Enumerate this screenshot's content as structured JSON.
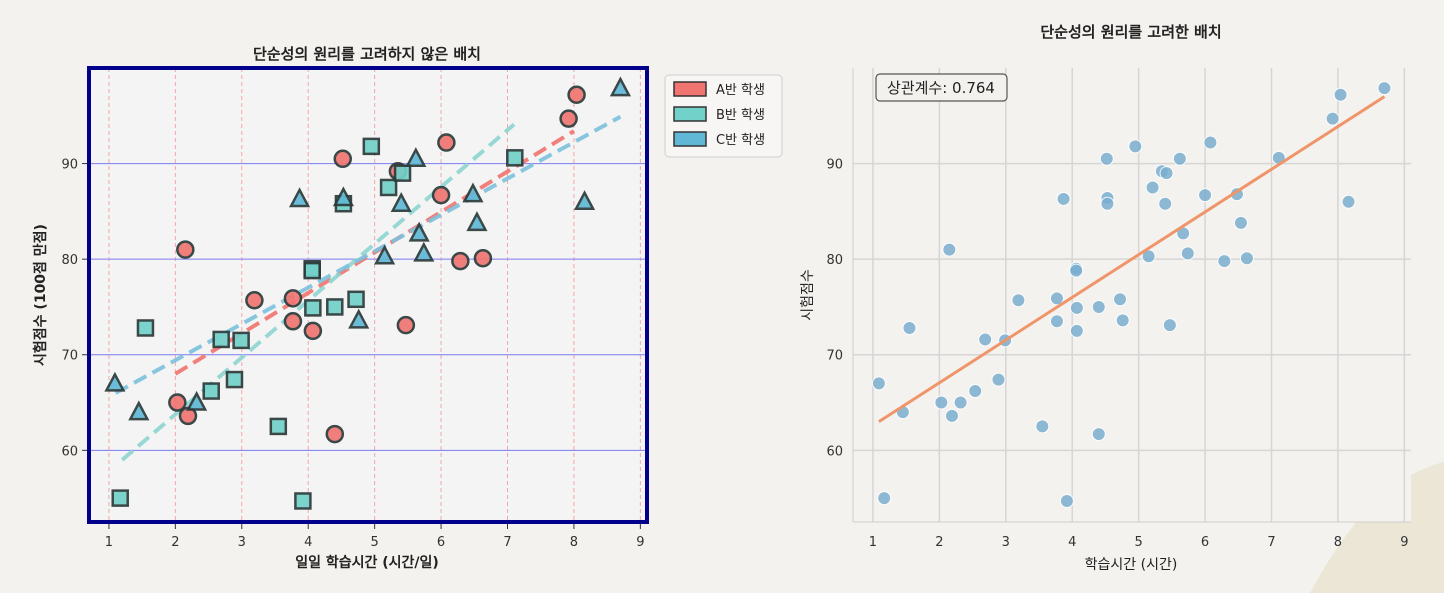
{
  "chart_data": [
    {
      "type": "scatter",
      "title": "단순성의 원리를 고려하지 않은 배치",
      "xlabel": "일일 학습시간 (시간/일)",
      "ylabel": "시험점수 (100점 만점)",
      "xlim": [
        0.7,
        9.1
      ],
      "ylim": [
        52.5,
        100.0
      ],
      "xticks": [
        1,
        2,
        3,
        4,
        5,
        6,
        7,
        8,
        9
      ],
      "yticks": [
        60,
        70,
        80,
        90
      ],
      "grid": {
        "x": "dashed",
        "y": "solid"
      },
      "legend_position": "outside-top-right",
      "series": [
        {
          "name": "A반 학생",
          "marker": "circle",
          "color": "#f07470",
          "trend_color": "#f07470",
          "points": [
            [
              2.03,
              65.0
            ],
            [
              2.15,
              81.0
            ],
            [
              2.19,
              63.6
            ],
            [
              3.19,
              75.7
            ],
            [
              3.77,
              75.9
            ],
            [
              3.77,
              73.5
            ],
            [
              4.07,
              72.5
            ],
            [
              4.4,
              61.7
            ],
            [
              4.52,
              90.5
            ],
            [
              5.35,
              89.2
            ],
            [
              5.47,
              73.1
            ],
            [
              6.0,
              86.7
            ],
            [
              6.08,
              92.2
            ],
            [
              6.29,
              79.8
            ],
            [
              6.63,
              80.1
            ],
            [
              7.92,
              94.7
            ],
            [
              8.04,
              97.2
            ]
          ],
          "trend": [
            [
              2.0,
              68.0
            ],
            [
              8.0,
              93.4
            ]
          ]
        },
        {
          "name": "B반 학생",
          "marker": "square",
          "color": "#72d1c9",
          "trend_color": "#8fd6d1",
          "points": [
            [
              1.17,
              55.0
            ],
            [
              1.55,
              72.8
            ],
            [
              2.54,
              66.2
            ],
            [
              2.69,
              71.6
            ],
            [
              2.89,
              67.4
            ],
            [
              2.99,
              71.5
            ],
            [
              3.55,
              62.5
            ],
            [
              3.92,
              54.7
            ],
            [
              4.06,
              79.0
            ],
            [
              4.06,
              78.8
            ],
            [
              4.07,
              74.9
            ],
            [
              4.4,
              75.0
            ],
            [
              4.53,
              85.8
            ],
            [
              4.72,
              75.8
            ],
            [
              4.95,
              91.8
            ],
            [
              5.21,
              87.5
            ],
            [
              5.42,
              89.0
            ],
            [
              7.11,
              90.6
            ]
          ],
          "trend": [
            [
              1.2,
              59.0
            ],
            [
              7.1,
              94.1
            ]
          ]
        },
        {
          "name": "C반 학생",
          "marker": "triangle",
          "color": "#60b8d6",
          "trend_color": "#7cc2dc",
          "points": [
            [
              1.09,
              67.0
            ],
            [
              1.45,
              64.0
            ],
            [
              2.32,
              65.0
            ],
            [
              3.87,
              86.3
            ],
            [
              4.53,
              86.4
            ],
            [
              4.76,
              73.6
            ],
            [
              5.15,
              80.3
            ],
            [
              5.4,
              85.8
            ],
            [
              5.62,
              90.5
            ],
            [
              5.67,
              82.7
            ],
            [
              5.74,
              80.6
            ],
            [
              6.48,
              86.8
            ],
            [
              6.54,
              83.8
            ],
            [
              8.16,
              86.0
            ],
            [
              8.7,
              97.9
            ]
          ],
          "trend": [
            [
              1.1,
              66.0
            ],
            [
              8.7,
              94.9
            ]
          ]
        }
      ]
    },
    {
      "type": "scatter",
      "title": "단순성의 원리를 고려한 배치",
      "xlabel": "학습시간 (시간)",
      "ylabel": "시험점수",
      "xlim": [
        0.7,
        9.1
      ],
      "ylim": [
        52.5,
        100.0
      ],
      "xticks": [
        1,
        2,
        3,
        4,
        5,
        6,
        7,
        8,
        9
      ],
      "yticks": [
        60,
        70,
        80,
        90
      ],
      "grid": {
        "x": "solid",
        "y": "solid"
      },
      "annotation": "상관계수: 0.764",
      "point_color": "#7aaed0",
      "trend_color": "#f0956a",
      "trend": [
        [
          1.09,
          63.0
        ],
        [
          8.7,
          97.0
        ]
      ],
      "points": [
        [
          1.09,
          67.0
        ],
        [
          1.17,
          55.0
        ],
        [
          1.45,
          64.0
        ],
        [
          1.55,
          72.8
        ],
        [
          2.03,
          65.0
        ],
        [
          2.15,
          81.0
        ],
        [
          2.19,
          63.6
        ],
        [
          2.32,
          65.0
        ],
        [
          2.54,
          66.2
        ],
        [
          2.69,
          71.6
        ],
        [
          2.89,
          67.4
        ],
        [
          2.99,
          71.5
        ],
        [
          3.19,
          75.7
        ],
        [
          3.55,
          62.5
        ],
        [
          3.77,
          75.9
        ],
        [
          3.77,
          73.5
        ],
        [
          3.87,
          86.3
        ],
        [
          3.92,
          54.7
        ],
        [
          4.06,
          79.0
        ],
        [
          4.06,
          78.8
        ],
        [
          4.07,
          74.9
        ],
        [
          4.07,
          72.5
        ],
        [
          4.4,
          75.0
        ],
        [
          4.4,
          61.7
        ],
        [
          4.52,
          90.5
        ],
        [
          4.53,
          86.4
        ],
        [
          4.53,
          85.8
        ],
        [
          4.72,
          75.8
        ],
        [
          4.76,
          73.6
        ],
        [
          4.95,
          91.8
        ],
        [
          5.15,
          80.3
        ],
        [
          5.21,
          87.5
        ],
        [
          5.35,
          89.2
        ],
        [
          5.4,
          85.8
        ],
        [
          5.42,
          89.0
        ],
        [
          5.47,
          73.1
        ],
        [
          5.62,
          90.5
        ],
        [
          5.67,
          82.7
        ],
        [
          5.74,
          80.6
        ],
        [
          6.0,
          86.7
        ],
        [
          6.08,
          92.2
        ],
        [
          6.29,
          79.8
        ],
        [
          6.48,
          86.8
        ],
        [
          6.54,
          83.8
        ],
        [
          6.63,
          80.1
        ],
        [
          7.11,
          90.6
        ],
        [
          7.92,
          94.7
        ],
        [
          8.04,
          97.2
        ],
        [
          8.16,
          86.0
        ],
        [
          8.7,
          97.9
        ]
      ]
    }
  ]
}
